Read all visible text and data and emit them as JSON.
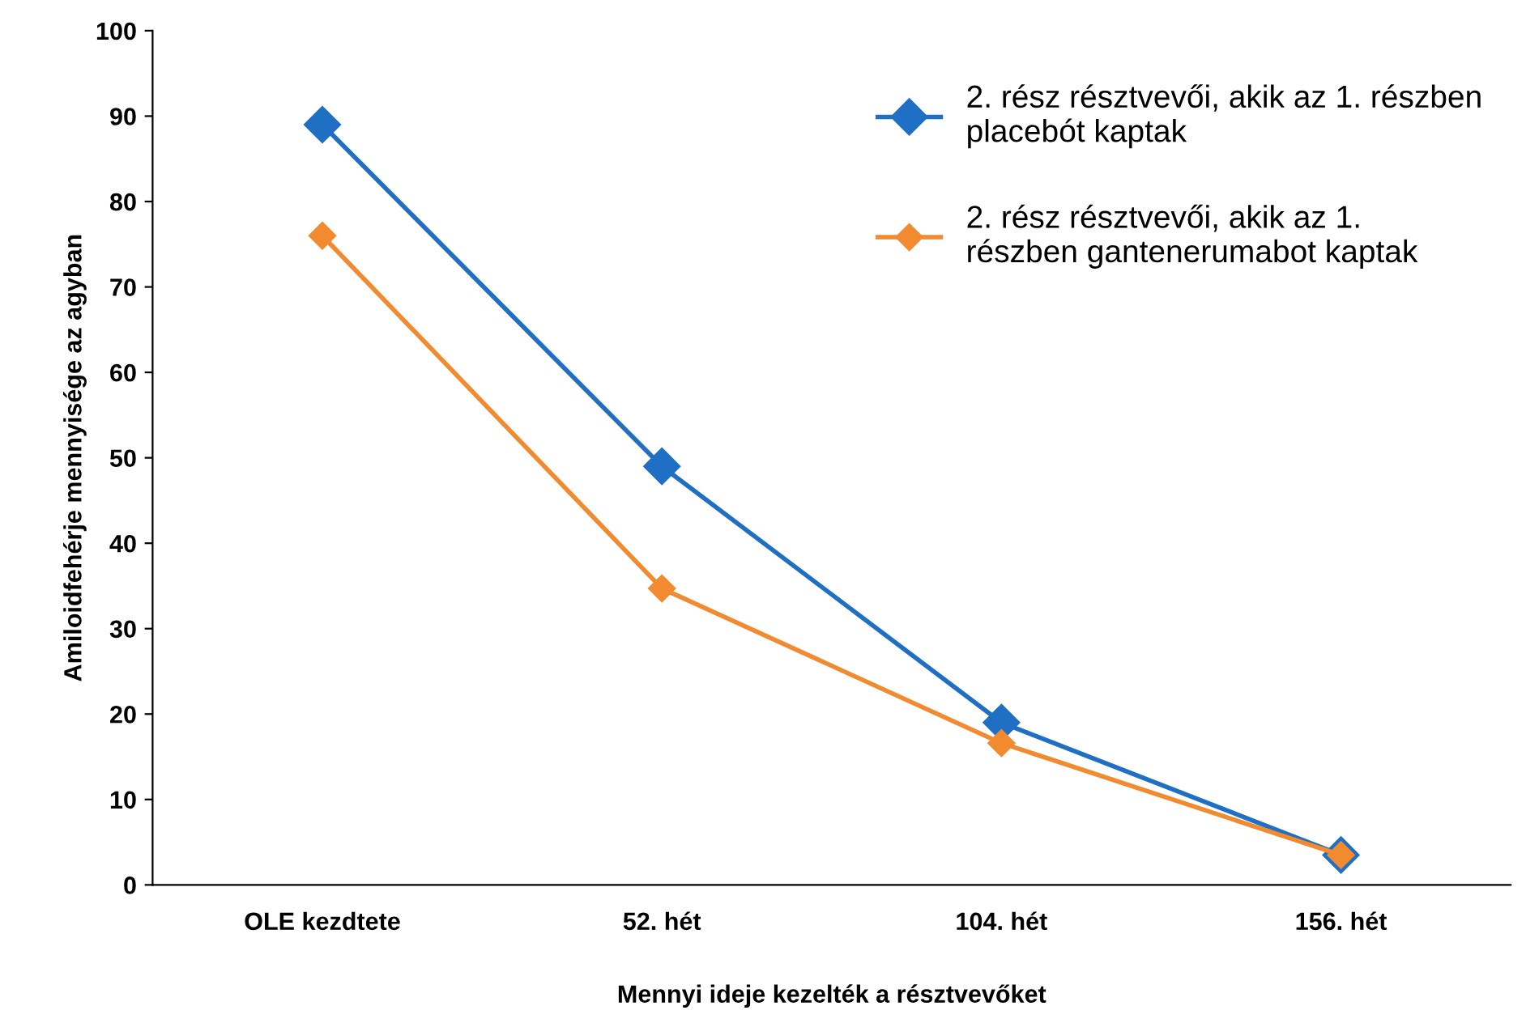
{
  "chart_data": {
    "type": "line",
    "xlabel": "Mennyi ideje kezelték a résztvevőket",
    "ylabel": "Amiloidfehérje mennyisége az agyban",
    "categories": [
      "OLE kezdtete",
      "52. hét",
      "104. hét",
      "156. hét"
    ],
    "series": [
      {
        "name": "2. rész résztvevői, akik az 1. részben\nplacebót kaptak",
        "color": "#1f6fc5",
        "values": [
          89,
          49,
          19,
          3.5
        ]
      },
      {
        "name": "2. rész résztvevői, akik az 1.\nrészben gantenerumabot kaptak",
        "color": "#f28a30",
        "values": [
          76,
          34.7,
          16.6,
          3.5
        ]
      }
    ],
    "ylim": [
      0,
      100
    ],
    "yticks": [
      0,
      10,
      20,
      30,
      40,
      50,
      60,
      70,
      80,
      90,
      100
    ],
    "grid": false,
    "legend": "top right",
    "marker": "diamond",
    "line_style": "solid"
  }
}
